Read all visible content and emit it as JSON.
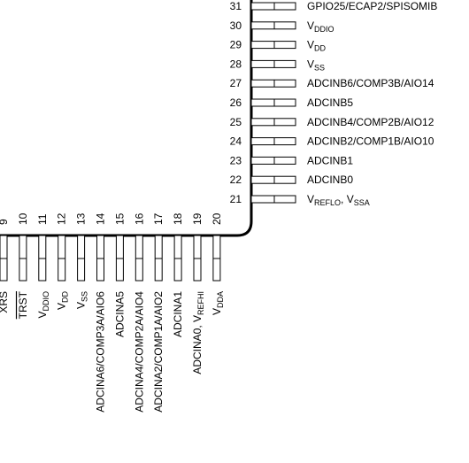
{
  "right_pins": [
    {
      "num": "31",
      "parts": [
        {
          "t": "GPIO25/ECAP2/SPISOMIB"
        }
      ]
    },
    {
      "num": "30",
      "parts": [
        {
          "t": "V"
        },
        {
          "t": "DDIO",
          "sub": true
        }
      ]
    },
    {
      "num": "29",
      "parts": [
        {
          "t": "V"
        },
        {
          "t": "DD",
          "sub": true
        }
      ]
    },
    {
      "num": "28",
      "parts": [
        {
          "t": "V"
        },
        {
          "t": "SS",
          "sub": true
        }
      ]
    },
    {
      "num": "27",
      "parts": [
        {
          "t": "ADCINB6/COMP3B/AIO14"
        }
      ]
    },
    {
      "num": "26",
      "parts": [
        {
          "t": "ADCINB5"
        }
      ]
    },
    {
      "num": "25",
      "parts": [
        {
          "t": "ADCINB4/COMP2B/AIO12"
        }
      ]
    },
    {
      "num": "24",
      "parts": [
        {
          "t": "ADCINB2/COMP1B/AIO10"
        }
      ]
    },
    {
      "num": "23",
      "parts": [
        {
          "t": "ADCINB1"
        }
      ]
    },
    {
      "num": "22",
      "parts": [
        {
          "t": "ADCINB0"
        }
      ]
    },
    {
      "num": "21",
      "parts": [
        {
          "t": "V"
        },
        {
          "t": "REFLO",
          "sub": true
        },
        {
          "t": ", V"
        },
        {
          "t": "SSA",
          "sub": true
        }
      ]
    }
  ],
  "bottom_pins": [
    {
      "num": "9",
      "parts": [
        {
          "t": "XRS"
        }
      ]
    },
    {
      "num": "10",
      "parts": [
        {
          "t": "TRST",
          "over": true
        }
      ]
    },
    {
      "num": "11",
      "parts": [
        {
          "t": "V"
        },
        {
          "t": "DDIO",
          "sub": true
        }
      ]
    },
    {
      "num": "12",
      "parts": [
        {
          "t": "V"
        },
        {
          "t": "DD",
          "sub": true
        }
      ]
    },
    {
      "num": "13",
      "parts": [
        {
          "t": "V"
        },
        {
          "t": "SS",
          "sub": true
        }
      ]
    },
    {
      "num": "14",
      "parts": [
        {
          "t": "ADCINA6/COMP3A/AIO6"
        }
      ]
    },
    {
      "num": "15",
      "parts": [
        {
          "t": "ADCINA5"
        }
      ]
    },
    {
      "num": "16",
      "parts": [
        {
          "t": "ADCINA4/COMP2A/AIO4"
        }
      ]
    },
    {
      "num": "17",
      "parts": [
        {
          "t": "ADCINA2/COMP1A/AIO2"
        }
      ]
    },
    {
      "num": "18",
      "parts": [
        {
          "t": "ADCINA1"
        }
      ]
    },
    {
      "num": "19",
      "parts": [
        {
          "t": "ADCINA0, V"
        },
        {
          "t": "REFHI",
          "sub": true
        }
      ]
    },
    {
      "num": "20",
      "parts": [
        {
          "t": "V"
        },
        {
          "t": "DDA",
          "sub": true
        }
      ]
    }
  ]
}
